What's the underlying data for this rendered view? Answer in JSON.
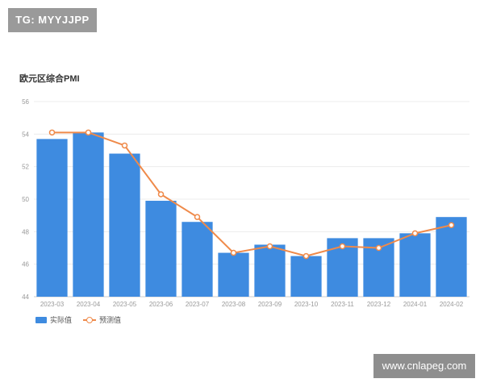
{
  "badge_top": "TG: MYYJJPP",
  "badge_bottom": "www.cnlapeg.com",
  "chart_data": {
    "type": "bar",
    "title": "欧元区综合PMI",
    "categories": [
      "2023-03",
      "2023-04",
      "2023-05",
      "2023-06",
      "2023-07",
      "2023-08",
      "2023-09",
      "2023-10",
      "2023-11",
      "2023-12",
      "2024-01",
      "2024-02"
    ],
    "series": [
      {
        "name": "实际值",
        "type": "bar",
        "color": "#3e8be0",
        "values": [
          53.7,
          54.1,
          52.8,
          49.9,
          48.6,
          46.7,
          47.2,
          46.5,
          47.6,
          47.6,
          47.9,
          48.9
        ]
      },
      {
        "name": "预测值",
        "type": "line",
        "color": "#ef8a4a",
        "values": [
          54.1,
          54.1,
          53.3,
          50.3,
          48.9,
          46.7,
          47.1,
          46.5,
          47.1,
          47.0,
          47.9,
          48.4
        ]
      }
    ],
    "ylim": [
      44,
      56
    ],
    "yticks": [
      44,
      46,
      48,
      50,
      52,
      54,
      56
    ],
    "grid": true,
    "legend": "bottom-left"
  }
}
